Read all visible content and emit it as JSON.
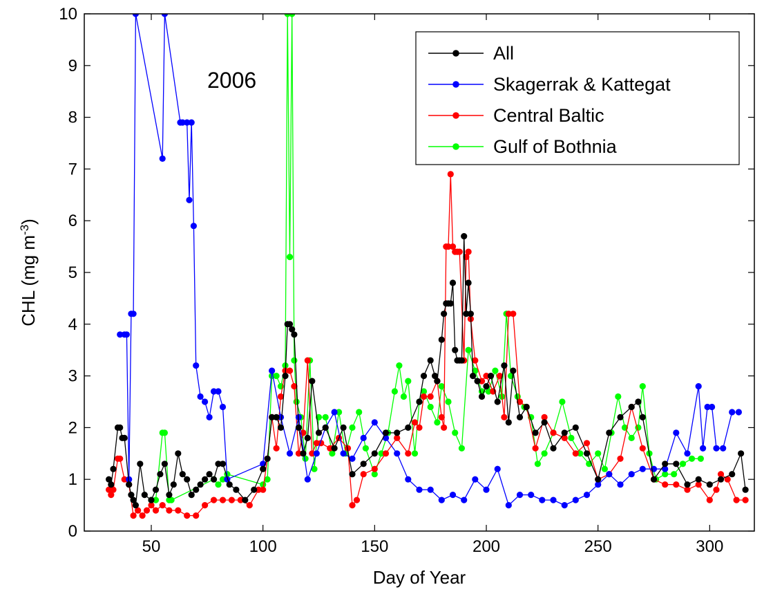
{
  "chart_data": {
    "type": "line",
    "title": "",
    "xlabel": "Day of Year",
    "ylabel_main": "CHL (mg m",
    "ylabel_exp": "-3",
    "ylabel_close": ")",
    "xlim": [
      20,
      320
    ],
    "ylim": [
      0,
      10
    ],
    "xticks": [
      50,
      100,
      150,
      200,
      250,
      300
    ],
    "yticks": [
      0,
      1,
      2,
      3,
      4,
      5,
      6,
      7,
      8,
      9,
      10
    ],
    "grid": false,
    "legend_position": "top-right",
    "annotation": "2006",
    "series": [
      {
        "name": "All",
        "color": "#000000",
        "x": [
          31,
          32,
          33,
          35,
          36,
          37,
          38,
          40,
          41,
          42,
          43,
          45,
          47,
          50,
          52,
          54,
          56,
          58,
          60,
          62,
          64,
          66,
          68,
          70,
          72,
          74,
          76,
          78,
          80,
          82,
          85,
          88,
          92,
          96,
          100,
          102,
          104,
          106,
          108,
          110,
          111,
          112,
          113,
          114,
          116,
          118,
          120,
          122,
          125,
          128,
          132,
          136,
          140,
          145,
          150,
          155,
          160,
          165,
          170,
          172,
          175,
          177,
          178,
          180,
          181,
          182,
          183,
          184,
          185,
          186,
          187,
          188,
          189,
          190,
          191,
          192,
          193,
          194,
          196,
          198,
          200,
          202,
          205,
          208,
          210,
          212,
          215,
          218,
          222,
          226,
          230,
          235,
          240,
          245,
          250,
          255,
          260,
          265,
          268,
          270,
          275,
          280,
          285,
          290,
          295,
          300,
          305,
          310,
          314,
          316
        ],
        "y": [
          1.0,
          0.9,
          1.2,
          2.0,
          2.0,
          1.8,
          1.8,
          0.9,
          0.7,
          0.6,
          0.5,
          1.3,
          0.7,
          0.6,
          0.8,
          1.1,
          1.3,
          0.7,
          0.9,
          1.5,
          1.1,
          1.0,
          0.7,
          0.8,
          0.9,
          1.0,
          1.1,
          1.0,
          1.3,
          1.3,
          0.9,
          0.8,
          0.6,
          0.8,
          1.2,
          1.4,
          2.2,
          2.2,
          2.0,
          3.0,
          4.0,
          4.0,
          3.9,
          3.8,
          2.0,
          1.5,
          1.8,
          2.9,
          1.9,
          2.0,
          1.6,
          2.0,
          1.1,
          1.3,
          1.5,
          1.9,
          1.9,
          2.0,
          2.5,
          3.0,
          3.3,
          3.0,
          2.9,
          3.7,
          4.2,
          4.4,
          4.4,
          4.4,
          4.8,
          3.5,
          3.3,
          3.3,
          3.3,
          5.7,
          4.2,
          4.8,
          4.2,
          3.0,
          2.9,
          2.6,
          2.8,
          3.0,
          2.5,
          3.2,
          2.1,
          3.1,
          2.2,
          2.4,
          1.9,
          2.1,
          1.6,
          1.9,
          2.0,
          1.5,
          1.0,
          1.9,
          2.2,
          2.4,
          2.5,
          2.2,
          1.0,
          1.3,
          1.3,
          0.9,
          1.0,
          0.9,
          1.0,
          1.1,
          1.5,
          0.8
        ]
      },
      {
        "name": "Skagerrak & Kattegat",
        "color": "#0000ff",
        "x": [
          36,
          38,
          39,
          40,
          41,
          42,
          43,
          55,
          56,
          63,
          64,
          66,
          67,
          68,
          69,
          70,
          72,
          74,
          76,
          78,
          80,
          82,
          84,
          100,
          104,
          108,
          112,
          116,
          120,
          124,
          128,
          132,
          136,
          140,
          145,
          150,
          155,
          160,
          165,
          170,
          175,
          180,
          185,
          190,
          195,
          200,
          205,
          210,
          215,
          220,
          225,
          230,
          235,
          240,
          245,
          250,
          255,
          260,
          265,
          270,
          275,
          280,
          285,
          290,
          295,
          297,
          299,
          301,
          303,
          306,
          310,
          313
        ],
        "y": [
          3.8,
          3.8,
          3.8,
          1.0,
          4.2,
          4.2,
          10.0,
          7.2,
          10.0,
          7.9,
          7.9,
          7.9,
          6.4,
          7.9,
          5.9,
          3.2,
          2.6,
          2.5,
          2.2,
          2.7,
          2.7,
          2.4,
          1.0,
          1.3,
          3.1,
          2.2,
          1.5,
          2.2,
          1.0,
          1.5,
          2.0,
          2.3,
          1.5,
          1.4,
          1.8,
          2.1,
          1.8,
          1.5,
          1.0,
          0.8,
          0.8,
          0.6,
          0.7,
          0.6,
          1.0,
          0.8,
          1.2,
          0.5,
          0.7,
          0.7,
          0.6,
          0.6,
          0.5,
          0.6,
          0.7,
          0.9,
          1.1,
          0.9,
          1.1,
          1.2,
          1.2,
          1.2,
          1.9,
          1.5,
          2.8,
          1.6,
          2.4,
          2.4,
          1.6,
          1.6,
          2.3,
          2.3
        ]
      },
      {
        "name": "Central Baltic",
        "color": "#ff0000",
        "x": [
          31,
          32,
          33,
          35,
          36,
          38,
          40,
          42,
          44,
          46,
          48,
          50,
          52,
          55,
          58,
          62,
          66,
          70,
          74,
          78,
          82,
          86,
          90,
          94,
          98,
          100,
          102,
          104,
          106,
          108,
          110,
          112,
          114,
          116,
          118,
          120,
          122,
          124,
          126,
          130,
          134,
          138,
          140,
          142,
          145,
          150,
          155,
          160,
          165,
          168,
          170,
          172,
          175,
          178,
          180,
          181,
          182,
          183,
          184,
          185,
          186,
          187,
          188,
          190,
          191,
          192,
          193,
          195,
          198,
          200,
          203,
          206,
          208,
          210,
          212,
          215,
          218,
          222,
          226,
          230,
          235,
          240,
          245,
          250,
          255,
          260,
          265,
          270,
          275,
          280,
          285,
          290,
          295,
          300,
          303,
          305,
          308,
          312,
          316
        ],
        "y": [
          0.8,
          0.7,
          0.8,
          1.4,
          1.4,
          1.0,
          0.9,
          0.3,
          0.4,
          0.3,
          0.4,
          0.5,
          0.4,
          0.5,
          0.4,
          0.4,
          0.3,
          0.3,
          0.5,
          0.6,
          0.6,
          0.6,
          0.6,
          0.5,
          0.8,
          0.8,
          1.4,
          2.2,
          1.6,
          2.6,
          3.1,
          3.1,
          2.8,
          1.5,
          1.9,
          3.3,
          1.5,
          1.7,
          1.7,
          1.6,
          1.8,
          1.6,
          0.5,
          0.6,
          1.1,
          1.2,
          1.5,
          1.8,
          1.5,
          2.1,
          2.0,
          2.6,
          2.6,
          2.9,
          2.2,
          2.0,
          5.5,
          5.5,
          6.9,
          5.5,
          5.4,
          5.4,
          5.4,
          3.3,
          5.3,
          5.4,
          4.1,
          3.3,
          2.9,
          3.0,
          2.7,
          3.0,
          2.2,
          4.2,
          4.2,
          2.5,
          2.4,
          1.6,
          2.2,
          1.9,
          1.8,
          1.5,
          1.7,
          1.0,
          1.1,
          1.4,
          2.4,
          1.6,
          1.0,
          0.9,
          0.9,
          0.8,
          0.9,
          0.6,
          0.8,
          1.1,
          1.0,
          0.6,
          0.6
        ]
      },
      {
        "name": "Gulf of Bothnia",
        "color": "#00ff00",
        "x": [
          50,
          52,
          55,
          56,
          58,
          59,
          78,
          80,
          82,
          84,
          100,
          102,
          104,
          106,
          108,
          110,
          111,
          112,
          113,
          114,
          115,
          117,
          119,
          121,
          123,
          125,
          128,
          131,
          134,
          137,
          140,
          143,
          146,
          150,
          153,
          156,
          159,
          161,
          163,
          165,
          168,
          170,
          172,
          175,
          178,
          180,
          183,
          186,
          189,
          192,
          195,
          198,
          201,
          204,
          207,
          209,
          211,
          214,
          217,
          220,
          223,
          226,
          230,
          234,
          238,
          242,
          246,
          250,
          253,
          256,
          259,
          262,
          265,
          268,
          270,
          273,
          276,
          280,
          284,
          288,
          292,
          296
        ],
        "y": [
          0.6,
          0.6,
          1.9,
          1.9,
          0.6,
          0.6,
          1.0,
          0.9,
          1.0,
          1.1,
          0.9,
          1.0,
          3.0,
          3.0,
          2.8,
          3.2,
          10.0,
          5.3,
          10.0,
          3.3,
          2.5,
          2.2,
          1.4,
          3.3,
          1.2,
          2.2,
          2.2,
          1.5,
          2.3,
          1.5,
          2.0,
          2.3,
          1.6,
          1.1,
          1.5,
          1.9,
          2.7,
          3.2,
          2.6,
          2.9,
          1.5,
          2.5,
          2.7,
          2.4,
          2.1,
          2.8,
          2.5,
          1.9,
          1.6,
          3.5,
          3.1,
          2.7,
          2.7,
          3.1,
          2.6,
          4.2,
          3.0,
          2.6,
          2.4,
          2.2,
          1.3,
          1.5,
          1.9,
          2.5,
          1.8,
          1.5,
          1.3,
          1.5,
          1.2,
          1.9,
          2.6,
          2.0,
          1.8,
          2.0,
          2.8,
          1.5,
          1.0,
          1.1,
          1.1,
          1.3,
          1.4,
          1.4
        ]
      }
    ]
  }
}
